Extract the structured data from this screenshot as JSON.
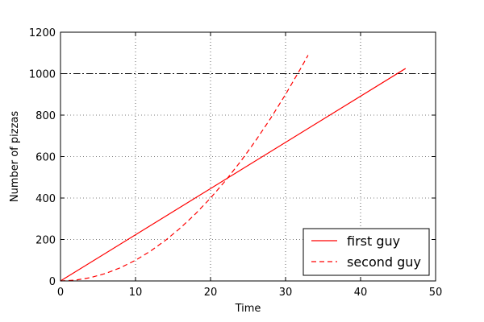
{
  "chart_data": {
    "type": "line",
    "title": "",
    "xlabel": "Time",
    "ylabel": "Number of pizzas",
    "xlim": [
      0,
      50
    ],
    "ylim": [
      0,
      1200
    ],
    "xticks": [
      0,
      10,
      20,
      30,
      40,
      50
    ],
    "yticks": [
      0,
      200,
      400,
      600,
      800,
      1000,
      1200
    ],
    "grid": true,
    "legend_position": "lower right",
    "series": [
      {
        "name": "first guy",
        "color": "#ff0000",
        "style": "solid",
        "x": [
          0,
          46
        ],
        "y": [
          0,
          1025
        ]
      },
      {
        "name": "second guy",
        "color": "#ff0000",
        "style": "dashed",
        "x": [
          0,
          2,
          4,
          6,
          8,
          10,
          12,
          14,
          16,
          18,
          20,
          22,
          24,
          26,
          28,
          30,
          32,
          33
        ],
        "y": [
          0,
          4,
          16,
          36,
          64,
          100,
          144,
          196,
          256,
          324,
          400,
          484,
          576,
          676,
          784,
          900,
          1024,
          1089
        ]
      }
    ],
    "reference_lines": [
      {
        "axis": "y",
        "value": 1000,
        "color": "#000000",
        "style": "dashdot"
      }
    ]
  }
}
